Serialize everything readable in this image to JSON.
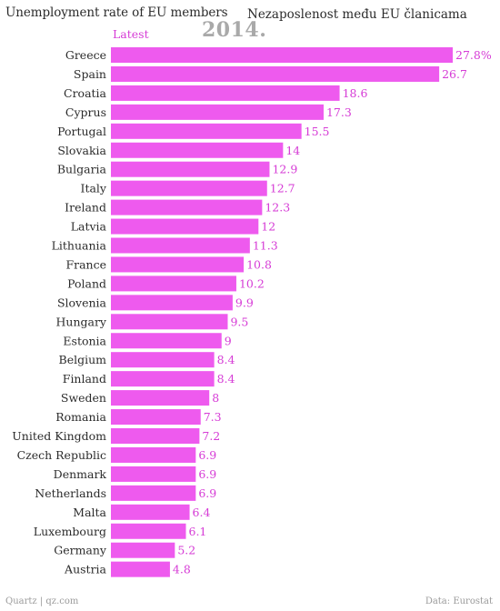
{
  "chart_data": {
    "type": "bar",
    "orientation": "horizontal",
    "title": "Unemployment rate of EU members",
    "subtitle": "Nezaposlenost među EU članicama",
    "year_label": "2014.",
    "series": [
      {
        "name": "Latest",
        "values": [
          27.8,
          26.7,
          18.6,
          17.3,
          15.5,
          14,
          12.9,
          12.7,
          12.3,
          12,
          11.3,
          10.8,
          10.2,
          9.9,
          9.5,
          9,
          8.4,
          8.4,
          8,
          7.3,
          7.2,
          6.9,
          6.9,
          6.9,
          6.4,
          6.1,
          5.2,
          4.8
        ]
      }
    ],
    "categories": [
      "Greece",
      "Spain",
      "Croatia",
      "Cyprus",
      "Portugal",
      "Slovakia",
      "Bulgaria",
      "Italy",
      "Ireland",
      "Latvia",
      "Lithuania",
      "France",
      "Poland",
      "Slovenia",
      "Hungary",
      "Estonia",
      "Belgium",
      "Finland",
      "Sweden",
      "Romania",
      "United Kingdom",
      "Czech Republic",
      "Denmark",
      "Netherlands",
      "Malta",
      "Luxembourg",
      "Germany",
      "Austria"
    ],
    "value_labels": [
      "27.8%",
      "26.7",
      "18.6",
      "17.3",
      "15.5",
      "14",
      "12.9",
      "12.7",
      "12.3",
      "12",
      "11.3",
      "10.8",
      "10.2",
      "9.9",
      "9.5",
      "9",
      "8.4",
      "8.4",
      "8",
      "7.3",
      "7.2",
      "6.9",
      "6.9",
      "6.9",
      "6.4",
      "6.1",
      "5.2",
      "4.8"
    ],
    "xlim": [
      0,
      27.8
    ],
    "grid": false,
    "bar_color": "#ee5aee",
    "label_color": "#d63cd6",
    "source_left": "Quartz | qz.com",
    "source_right": "Data: Eurostat"
  }
}
